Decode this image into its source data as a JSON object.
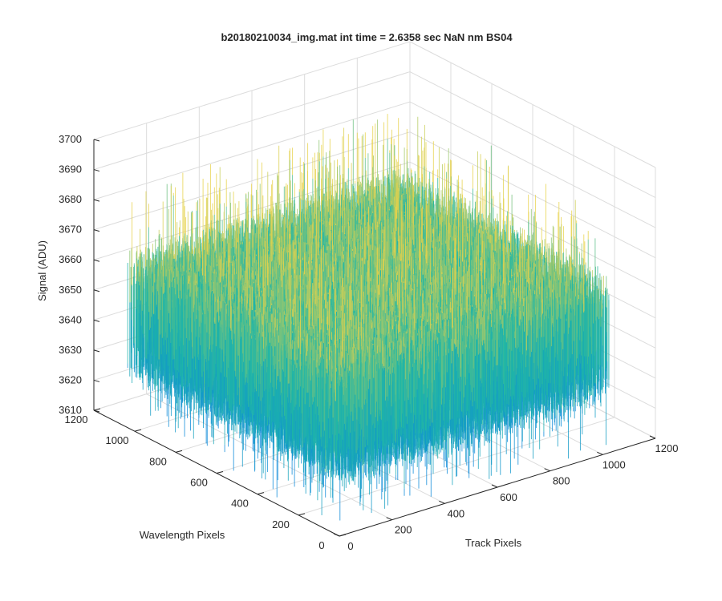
{
  "chart_data": {
    "type": "surface",
    "title": "b20180210034_img.mat int time = 2.6358 sec  NaN nm BS04",
    "xlabel": "Track Pixels",
    "ylabel": "Wavelength Pixels",
    "zlabel": "Signal (ADU)",
    "xlim": [
      0,
      1200
    ],
    "ylim": [
      0,
      1200
    ],
    "zlim": [
      3610,
      3700
    ],
    "x_ticks": [
      "0",
      "200",
      "400",
      "600",
      "800",
      "1000",
      "1200"
    ],
    "y_ticks": [
      "0",
      "200",
      "400",
      "600",
      "800",
      "1000",
      "1200"
    ],
    "z_ticks": [
      "3610",
      "3620",
      "3630",
      "3640",
      "3650",
      "3660",
      "3670",
      "3680",
      "3690",
      "3700"
    ],
    "grid": true,
    "colormap": "parula",
    "surface_extent": {
      "x": [
        0,
        1024
      ],
      "y": [
        0,
        1024
      ]
    },
    "signal": {
      "mean": 3648,
      "typical_min": 3625,
      "typical_max": 3670,
      "outlier_min": 3612,
      "outlier_max": 3692
    },
    "colors": {
      "low": "#0d8bd9",
      "mid": "#1fb7a6",
      "high": "#e8d24a",
      "axis": "#262626",
      "grid": "#dcdcdc"
    }
  }
}
